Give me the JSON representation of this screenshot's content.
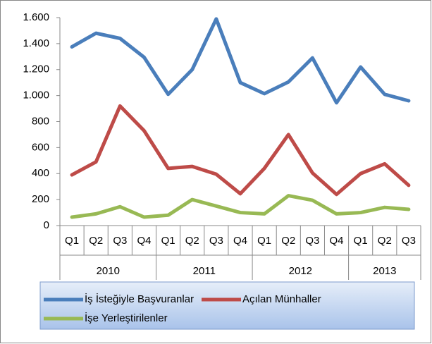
{
  "chart_data": {
    "type": "line",
    "groups": [
      {
        "label": "2010",
        "categories": [
          "Q1",
          "Q2",
          "Q3",
          "Q4"
        ]
      },
      {
        "label": "2011",
        "categories": [
          "Q1",
          "Q2",
          "Q3",
          "Q4"
        ]
      },
      {
        "label": "2012",
        "categories": [
          "Q1",
          "Q2",
          "Q3",
          "Q4"
        ]
      },
      {
        "label": "2013",
        "categories": [
          "Q1",
          "Q2",
          "Q3"
        ]
      }
    ],
    "series": [
      {
        "name": "İş İsteğiyle Başvuranlar",
        "color": "#4a7ebb",
        "values": [
          1375,
          1480,
          1440,
          1295,
          1010,
          1200,
          1590,
          1100,
          1015,
          1105,
          1290,
          945,
          1220,
          1010,
          960
        ]
      },
      {
        "name": "Açılan Münhaller",
        "color": "#be4b48",
        "values": [
          390,
          490,
          920,
          730,
          440,
          455,
          395,
          245,
          440,
          700,
          405,
          240,
          400,
          475,
          310
        ]
      },
      {
        "name": "İşe Yerleştirilenler",
        "color": "#98b954",
        "values": [
          65,
          90,
          145,
          65,
          80,
          200,
          150,
          100,
          90,
          230,
          195,
          90,
          100,
          140,
          125
        ]
      }
    ],
    "ylim": [
      0,
      1600
    ],
    "yticks": [
      0,
      200,
      400,
      600,
      800,
      {
        "value": 1000,
        "label": "1.000"
      },
      {
        "value": 1200,
        "label": "1.200"
      },
      {
        "value": 1400,
        "label": "1.400"
      },
      {
        "value": 1600,
        "label": "1.600"
      }
    ],
    "grid": false
  }
}
